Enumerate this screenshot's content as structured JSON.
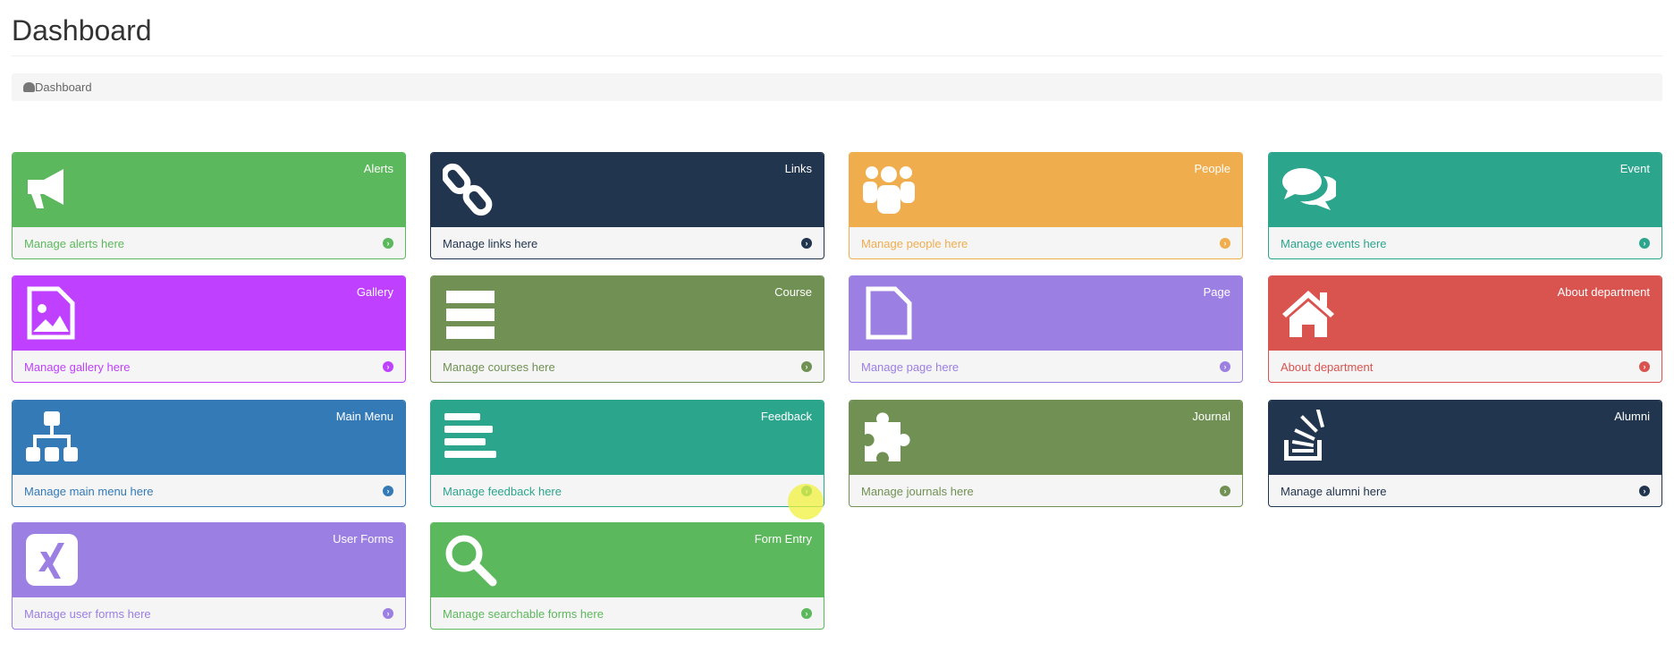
{
  "page": {
    "title": "Dashboard",
    "breadcrumb": "Dashboard"
  },
  "cards": [
    {
      "title": "Alerts",
      "link": "Manage alerts here",
      "color": "#5cb85c",
      "icon": "bullhorn-icon"
    },
    {
      "title": "Links",
      "link": "Manage links here",
      "color": "#22354f",
      "icon": "chain-icon"
    },
    {
      "title": "People",
      "link": "Manage people here",
      "color": "#f0ad4e",
      "icon": "users-icon"
    },
    {
      "title": "Event",
      "link": "Manage events here",
      "color": "#2ca58d",
      "icon": "comments-icon"
    },
    {
      "title": "Gallery",
      "link": "Manage gallery here",
      "color": "#bf40ff",
      "icon": "file-image-icon"
    },
    {
      "title": "Course",
      "link": "Manage courses here",
      "color": "#709153",
      "icon": "server-icon"
    },
    {
      "title": "Page",
      "link": "Manage page here",
      "color": "#9b7fe2",
      "icon": "file-icon"
    },
    {
      "title": "About department",
      "link": "About department",
      "color": "#d9534f",
      "icon": "home-icon"
    },
    {
      "title": "Main Menu",
      "link": "Manage main menu here",
      "color": "#337ab7",
      "icon": "sitemap-icon"
    },
    {
      "title": "Feedback",
      "link": "Manage feedback here",
      "color": "#2ca58d",
      "icon": "align-left-icon"
    },
    {
      "title": "Journal",
      "link": "Manage journals here",
      "color": "#709153",
      "icon": "puzzle-icon"
    },
    {
      "title": "Alumni",
      "link": "Manage alumni here",
      "color": "#22354f",
      "icon": "stack-overflow-icon"
    },
    {
      "title": "User Forms",
      "link": "Manage user forms here",
      "color": "#9b7fe2",
      "icon": "xing-icon"
    },
    {
      "title": "Form Entry",
      "link": "Manage searchable forms here",
      "color": "#5cb85c",
      "icon": "search-icon"
    }
  ]
}
